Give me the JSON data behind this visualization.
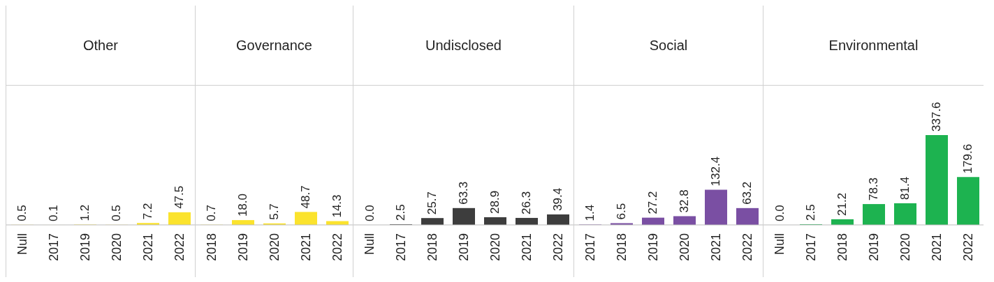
{
  "chart_data": [
    {
      "type": "bar",
      "title": "Other",
      "categories": [
        "Null",
        "2017",
        "2019",
        "2020",
        "2021",
        "2022"
      ],
      "values": [
        0.5,
        0.1,
        1.2,
        0.5,
        7.2,
        47.5
      ],
      "value_labels": [
        "0.5",
        "0.1",
        "1.2",
        "0.5",
        "7.2",
        "47.5"
      ],
      "color": "#fbe32d"
    },
    {
      "type": "bar",
      "title": "Governance",
      "categories": [
        "2018",
        "2019",
        "2020",
        "2021",
        "2022"
      ],
      "values": [
        0.7,
        18.0,
        5.7,
        48.7,
        14.3
      ],
      "value_labels": [
        "0.7",
        "18.0",
        "5.7",
        "48.7",
        "14.3"
      ],
      "color": "#fbe32d"
    },
    {
      "type": "bar",
      "title": "Undisclosed",
      "categories": [
        "Null",
        "2017",
        "2018",
        "2019",
        "2020",
        "2021",
        "2022"
      ],
      "values": [
        0.0,
        2.5,
        25.7,
        63.3,
        28.9,
        26.3,
        39.4
      ],
      "value_labels": [
        "0.0",
        "2.5",
        "25.7",
        "63.3",
        "28.9",
        "26.3",
        "39.4"
      ],
      "color": "#3d3d3d"
    },
    {
      "type": "bar",
      "title": "Social",
      "categories": [
        "2017",
        "2018",
        "2019",
        "2020",
        "2021",
        "2022"
      ],
      "values": [
        1.4,
        6.5,
        27.2,
        32.8,
        132.4,
        63.2
      ],
      "value_labels": [
        "1.4",
        "6.5",
        "27.2",
        "32.8",
        "132.4",
        "63.2"
      ],
      "color": "#7a4fa3"
    },
    {
      "type": "bar",
      "title": "Environmental",
      "categories": [
        "Null",
        "2017",
        "2018",
        "2019",
        "2020",
        "2021",
        "2022"
      ],
      "values": [
        0.0,
        2.5,
        21.2,
        78.3,
        81.4,
        337.6,
        179.6
      ],
      "value_labels": [
        "0.0",
        "2.5",
        "21.2",
        "78.3",
        "81.4",
        "337.6",
        "179.6"
      ],
      "color": "#1db350"
    }
  ]
}
